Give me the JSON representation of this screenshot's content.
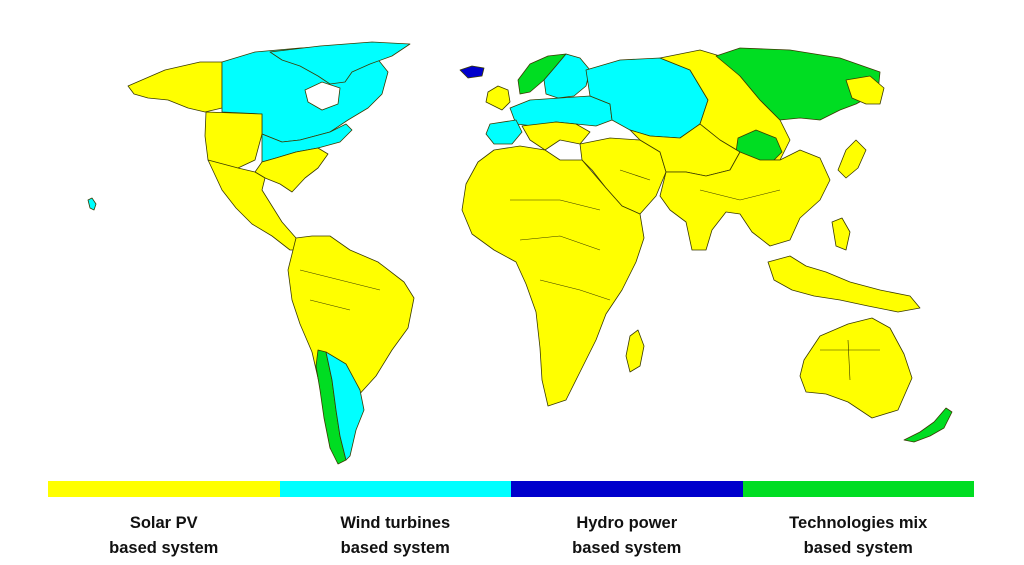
{
  "colors": {
    "solar": "#FFFF00",
    "wind": "#00FFFF",
    "hydro": "#0000CC",
    "mix": "#00DD22"
  },
  "legend": [
    {
      "key": "solar",
      "line1": "Solar PV",
      "line2": "based system",
      "color": "#FFFF00"
    },
    {
      "key": "wind",
      "line1": "Wind turbines",
      "line2": "based system",
      "color": "#00FFFF"
    },
    {
      "key": "hydro",
      "line1": "Hydro power",
      "line2": "based system",
      "color": "#0000CC"
    },
    {
      "key": "mix",
      "line1": "Technologies mix",
      "line2": "based system",
      "color": "#00DD22"
    }
  ],
  "regions": [
    {
      "name": "Alaska",
      "category": "solar"
    },
    {
      "name": "Canada",
      "category": "wind"
    },
    {
      "name": "Greenland",
      "category": "wind"
    },
    {
      "name": "Western United States",
      "category": "solar"
    },
    {
      "name": "Northern and Eastern United States",
      "category": "wind"
    },
    {
      "name": "Southeastern United States",
      "category": "solar"
    },
    {
      "name": "Mexico and Central America",
      "category": "solar"
    },
    {
      "name": "South America",
      "category": "solar"
    },
    {
      "name": "Chile",
      "category": "mix"
    },
    {
      "name": "Argentina",
      "category": "wind"
    },
    {
      "name": "Iceland",
      "category": "hydro"
    },
    {
      "name": "Norway",
      "category": "mix"
    },
    {
      "name": "Sweden and Finland",
      "category": "wind"
    },
    {
      "name": "Ireland and United Kingdom",
      "category": "solar"
    },
    {
      "name": "Central and Eastern Europe",
      "category": "wind"
    },
    {
      "name": "Iberia",
      "category": "wind"
    },
    {
      "name": "European Russia",
      "category": "wind"
    },
    {
      "name": "Siberia",
      "category": "solar"
    },
    {
      "name": "Eastern Siberia",
      "category": "mix"
    },
    {
      "name": "Central Siberia",
      "category": "mix"
    },
    {
      "name": "Kamchatka",
      "category": "solar"
    },
    {
      "name": "Africa",
      "category": "solar"
    },
    {
      "name": "Madagascar",
      "category": "solar"
    },
    {
      "name": "Middle East",
      "category": "solar"
    },
    {
      "name": "Central Asia",
      "category": "solar"
    },
    {
      "name": "South and East Asia",
      "category": "solar"
    },
    {
      "name": "Japan",
      "category": "solar"
    },
    {
      "name": "Southeast Asia and Indonesia",
      "category": "solar"
    },
    {
      "name": "Australia",
      "category": "solar"
    },
    {
      "name": "New Zealand",
      "category": "mix"
    },
    {
      "name": "Hawaii",
      "category": "wind"
    }
  ]
}
